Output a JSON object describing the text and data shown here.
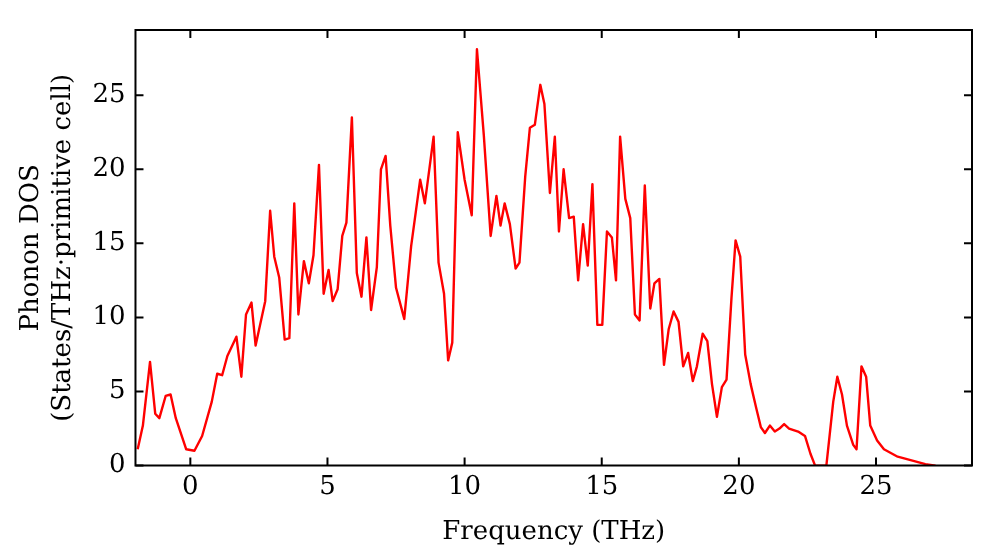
{
  "chart_data": {
    "type": "line",
    "xlabel": "Frequency (THz)",
    "ylabel": "Phonon DOS\n(States/THz·primitive cell)",
    "xlim": [
      -2,
      28.5
    ],
    "ylim": [
      0,
      29.4
    ],
    "xticks": [
      0,
      5,
      10,
      15,
      20,
      25
    ],
    "yticks": [
      0,
      5,
      10,
      15,
      20,
      25
    ],
    "grid": false,
    "legend": false,
    "marker": "none",
    "line_style": "solid",
    "series": [
      {
        "color": "#ff0000",
        "x": [
          -1.92,
          -1.73,
          -1.47,
          -1.28,
          -1.13,
          -0.9,
          -0.72,
          -0.53,
          -0.15,
          0.15,
          0.43,
          0.78,
          0.98,
          1.16,
          1.35,
          1.68,
          1.86,
          2.03,
          2.23,
          2.38,
          2.73,
          2.91,
          3.06,
          3.24,
          3.44,
          3.61,
          3.79,
          3.94,
          4.14,
          4.32,
          4.49,
          4.69,
          4.86,
          5.04,
          5.19,
          5.37,
          5.54,
          5.69,
          5.89,
          6.07,
          6.24,
          6.42,
          6.59,
          6.8,
          6.95,
          7.12,
          7.29,
          7.5,
          7.8,
          8.05,
          8.38,
          8.55,
          8.87,
          9.05,
          9.25,
          9.4,
          9.55,
          9.75,
          10.0,
          10.26,
          10.45,
          10.7,
          10.95,
          11.16,
          11.31,
          11.46,
          11.65,
          11.86,
          12.0,
          12.21,
          12.38,
          12.56,
          12.76,
          12.91,
          13.11,
          13.29,
          13.44,
          13.61,
          13.81,
          13.98,
          14.14,
          14.32,
          14.49,
          14.66,
          14.84,
          15.02,
          15.19,
          15.37,
          15.52,
          15.67,
          15.86,
          16.04,
          16.21,
          16.38,
          16.57,
          16.77,
          16.92,
          17.1,
          17.27,
          17.44,
          17.62,
          17.8,
          17.97,
          18.15,
          18.32,
          18.47,
          18.68,
          18.85,
          19.02,
          19.2,
          19.38,
          19.55,
          19.73,
          19.88,
          20.05,
          20.23,
          20.43,
          20.63,
          20.8,
          20.95,
          21.13,
          21.31,
          21.48,
          21.65,
          21.83,
          22.16,
          22.41,
          22.61,
          22.78,
          23.19,
          23.44,
          23.59,
          23.76,
          23.94,
          24.17,
          24.29,
          24.47,
          24.64,
          24.79,
          25.04,
          25.29,
          25.79,
          26.8,
          27.17
        ],
        "values": [
          1.1,
          2.7,
          7.0,
          3.5,
          3.2,
          4.7,
          4.8,
          3.2,
          1.1,
          1.0,
          2.0,
          4.3,
          6.2,
          6.1,
          7.4,
          8.7,
          6.0,
          10.2,
          11.0,
          8.1,
          11.1,
          17.2,
          14.1,
          12.7,
          8.5,
          8.6,
          17.7,
          10.2,
          13.8,
          12.3,
          14.2,
          20.3,
          11.6,
          13.2,
          11.1,
          11.9,
          15.5,
          16.4,
          23.5,
          13.0,
          11.4,
          15.4,
          10.5,
          13.4,
          20.0,
          20.9,
          16.2,
          12.0,
          9.9,
          14.8,
          19.3,
          17.7,
          22.2,
          13.7,
          11.6,
          7.1,
          8.3,
          22.5,
          19.3,
          16.9,
          28.1,
          22.3,
          15.5,
          18.2,
          16.2,
          17.7,
          16.3,
          13.3,
          13.7,
          19.5,
          22.8,
          23.0,
          25.7,
          24.4,
          18.4,
          22.2,
          15.8,
          20.0,
          16.7,
          16.8,
          12.5,
          16.3,
          13.5,
          19.0,
          9.5,
          9.5,
          15.8,
          15.4,
          12.5,
          22.2,
          18.0,
          16.7,
          10.2,
          9.8,
          18.9,
          10.6,
          12.3,
          12.6,
          6.8,
          9.2,
          10.4,
          9.7,
          6.7,
          7.6,
          5.7,
          6.7,
          8.9,
          8.4,
          5.5,
          3.3,
          5.3,
          5.8,
          11.3,
          15.2,
          14.1,
          7.5,
          5.5,
          3.9,
          2.6,
          2.2,
          2.7,
          2.3,
          2.5,
          2.8,
          2.5,
          2.3,
          2.0,
          0.8,
          0,
          0,
          4.3,
          6.0,
          4.8,
          2.7,
          1.4,
          1.1,
          6.7,
          6.0,
          2.7,
          1.7,
          1.1,
          0.6,
          0.1,
          0
        ]
      }
    ]
  }
}
